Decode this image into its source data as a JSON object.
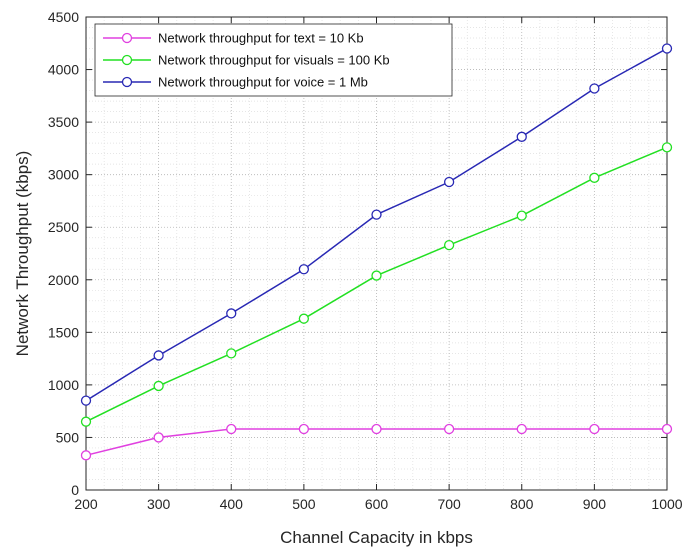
{
  "chart_data": {
    "type": "line",
    "title": "",
    "xlabel": "Channel Capacity in kbps",
    "ylabel": "Network Throughput (kbps)",
    "x": [
      200,
      300,
      400,
      500,
      600,
      700,
      800,
      900,
      1000
    ],
    "xlim": [
      200,
      1000
    ],
    "ylim": [
      0,
      4500
    ],
    "xticks": [
      "200",
      "300",
      "400",
      "500",
      "600",
      "700",
      "800",
      "900",
      "1000"
    ],
    "yticks": [
      "0",
      "500",
      "1000",
      "1500",
      "2000",
      "2500",
      "3000",
      "3500",
      "4000",
      "4500"
    ],
    "grid": "dotted",
    "legend_position": "top-left",
    "series": [
      {
        "name": "Network throughput for text = 10 Kb",
        "color": "#e040e0",
        "marker": "circle",
        "values": [
          330,
          500,
          580,
          580,
          580,
          580,
          580,
          580,
          580
        ]
      },
      {
        "name": "Network throughput for visuals = 100 Kb",
        "color": "#22e022",
        "marker": "circle",
        "values": [
          650,
          990,
          1300,
          1630,
          2040,
          2330,
          2610,
          2970,
          3260
        ]
      },
      {
        "name": "Network throughput for voice = 1 Mb",
        "color": "#2828b4",
        "marker": "circle",
        "values": [
          850,
          1280,
          1680,
          2100,
          2620,
          2930,
          3360,
          3820,
          4200
        ]
      }
    ]
  }
}
